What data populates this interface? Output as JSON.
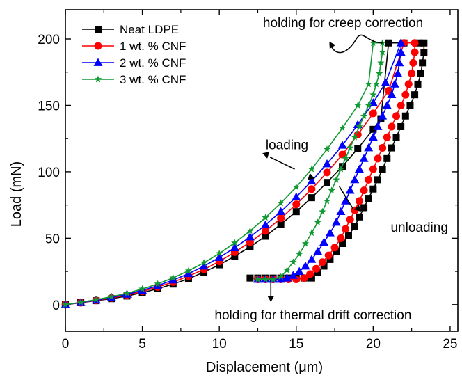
{
  "chart_data": {
    "type": "line",
    "xlabel": "Displacement (μm)",
    "ylabel": "Load (mN)",
    "xlim": [
      0,
      25.5
    ],
    "ylim": [
      -20,
      222
    ],
    "xticks": [
      0,
      5,
      10,
      15,
      20,
      25
    ],
    "yticks": [
      0,
      50,
      100,
      150,
      200
    ],
    "xtick_labels": [
      "0",
      "5",
      "10",
      "15",
      "20",
      "25"
    ],
    "ytick_labels": [
      "0",
      "50",
      "100",
      "150",
      "200"
    ],
    "grid": false,
    "legend_position": "top-left",
    "series": [
      {
        "name": "Neat LDPE",
        "color": "#000000",
        "marker": "square",
        "x": [
          0,
          1,
          2,
          3,
          4,
          5,
          6,
          7,
          8,
          9,
          10,
          11,
          12,
          13,
          14,
          15,
          16,
          17,
          18,
          19,
          20,
          20.5,
          21,
          22,
          23,
          23.3,
          23.3,
          23.2,
          23.1,
          22.9,
          22.7,
          22.4,
          22.1,
          21.8,
          21.5,
          21.2,
          20.9,
          20.6,
          20.3,
          20,
          19.7,
          19.4,
          19.1,
          18.8,
          18.4,
          18,
          17.6,
          17.2,
          16.8,
          16.4,
          16,
          15.5,
          15,
          14.5,
          14,
          13.5,
          13,
          12.5,
          12
        ],
        "y": [
          0,
          1.5,
          3,
          4.5,
          6.5,
          9,
          12,
          15.5,
          19.5,
          24.5,
          30,
          36.5,
          43.5,
          51.5,
          60.5,
          70,
          80.5,
          92,
          104,
          117.5,
          132,
          140,
          197,
          197,
          197,
          197,
          190,
          182,
          174,
          166,
          158,
          150,
          142,
          134,
          126,
          118,
          110,
          102,
          94,
          87,
          80,
          73,
          66,
          59,
          52,
          46,
          40,
          34,
          29,
          24,
          20,
          20,
          20,
          20,
          20,
          20,
          20,
          20,
          20
        ]
      },
      {
        "name": "1 wt. % CNF",
        "color": "#ff0000",
        "marker": "circle",
        "x": [
          0,
          1,
          2,
          3,
          4,
          5,
          6,
          7,
          8,
          9,
          10,
          11,
          12,
          13,
          14,
          15,
          16,
          17,
          18,
          19,
          20,
          21,
          22,
          22.7,
          22.7,
          22.6,
          22.5,
          22.3,
          22.1,
          21.8,
          21.5,
          21.2,
          20.9,
          20.6,
          20.3,
          20,
          19.7,
          19.4,
          19.1,
          18.8,
          18.5,
          18.2,
          17.9,
          17.5,
          17.1,
          16.7,
          16.3,
          15.9,
          15.5,
          15,
          14.5,
          14,
          13.5,
          13,
          12.5
        ],
        "y": [
          0,
          1.5,
          3.2,
          5,
          7.2,
          10,
          13.3,
          17,
          21.5,
          26.5,
          32.5,
          39.5,
          47,
          55.5,
          65,
          75.5,
          87,
          99.5,
          113,
          128,
          144,
          161,
          197,
          197,
          190,
          182,
          174,
          166,
          158,
          150,
          142,
          134,
          126,
          118,
          110,
          102,
          94,
          86,
          78,
          71,
          64,
          57,
          50,
          43,
          37,
          32,
          27,
          23,
          20,
          19,
          19,
          19,
          19,
          19,
          19
        ]
      },
      {
        "name": "2 wt. % CNF",
        "color": "#0000ff",
        "marker": "triangle",
        "x": [
          0,
          1,
          2,
          3,
          4,
          5,
          6,
          7,
          8,
          9,
          10,
          11,
          12,
          13,
          14,
          15,
          16,
          17,
          18,
          19,
          20,
          20.8,
          21.8,
          21.8,
          21.7,
          21.6,
          21.4,
          21.2,
          20.9,
          20.6,
          20.3,
          20,
          19.7,
          19.4,
          19.1,
          18.8,
          18.5,
          18.2,
          17.9,
          17.6,
          17.2,
          16.8,
          16.4,
          16,
          15.6,
          15.2,
          14.8,
          14.4,
          14,
          13.5,
          13,
          12.5
        ],
        "y": [
          0,
          1.6,
          3.4,
          5.4,
          7.8,
          10.8,
          14.3,
          18.5,
          23.3,
          29,
          35.5,
          42.8,
          51,
          60,
          70,
          81,
          93,
          106,
          120,
          135.5,
          152,
          167,
          197,
          190,
          182,
          174,
          166,
          158,
          150,
          142,
          134,
          126,
          118,
          110,
          102,
          94,
          86,
          78,
          70,
          62,
          54,
          47,
          40,
          34,
          29,
          25,
          22,
          20,
          19,
          19,
          19,
          19
        ]
      },
      {
        "name": "3 wt. % CNF",
        "color": "#119933",
        "marker": "star",
        "x": [
          0,
          1,
          2,
          3,
          4,
          5,
          6,
          7,
          8,
          9,
          10,
          11,
          12,
          13,
          14,
          15,
          16,
          17,
          18,
          19,
          19.7,
          20,
          20.6,
          20.6,
          20.5,
          20.4,
          20.2,
          20,
          19.7,
          19.4,
          19.1,
          18.8,
          18.5,
          18.2,
          17.9,
          17.6,
          17.3,
          17,
          16.7,
          16.4,
          16,
          15.6,
          15.2,
          14.8,
          14.4,
          14,
          13.5,
          13,
          12.5
        ],
        "y": [
          0,
          1.8,
          3.8,
          6,
          8.6,
          11.8,
          15.6,
          20.2,
          25.5,
          31.5,
          38.5,
          46.5,
          55.5,
          65.5,
          76.5,
          88.5,
          102,
          117,
          133,
          150,
          166,
          197,
          197,
          190,
          182,
          174,
          166,
          158,
          150,
          142,
          134,
          126,
          118,
          110,
          102,
          94,
          86,
          78,
          70,
          62,
          54,
          46,
          38,
          32,
          26,
          21,
          19,
          19,
          19
        ]
      }
    ],
    "annotations": [
      {
        "text": "holding for creep correction",
        "x": 17.5,
        "y": 212,
        "arrow_to": [
          17.2,
          191
        ]
      },
      {
        "text": "loading",
        "x": 14.4,
        "y": 120,
        "arrow_to": [
          14.4,
          127
        ]
      },
      {
        "text": "unloading",
        "x": 23,
        "y": 58,
        "arrow_to": [
          19,
          70
        ]
      },
      {
        "text": "holding for thermal drift correction",
        "x": 12.7,
        "y": -8,
        "arrow_to": [
          13.4,
          23
        ]
      }
    ]
  }
}
